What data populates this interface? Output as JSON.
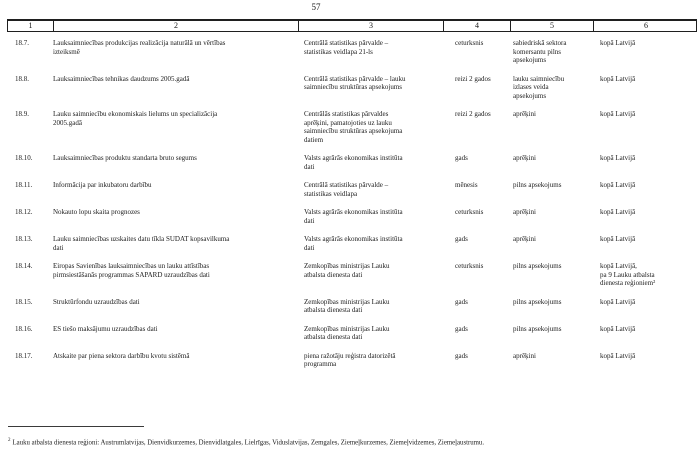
{
  "page": {
    "number": "57"
  },
  "table": {
    "columns": [
      "1",
      "2",
      "3",
      "4",
      "5",
      "6"
    ],
    "rows": [
      {
        "num": "18.7.",
        "name": "Lauksaimniecības produkcijas realizācija naturālā un vērtības\nizteiksmē",
        "source": "Centrālā statistikas pārvalde –\nstatistikas veidlapa 21-ls",
        "periodicity": "ceturksnis",
        "method": "sabiedriskā sektora\nkomersantu pilns\napsekojums",
        "coverage": "kopā Latvijā"
      },
      {
        "num": "18.8.",
        "name": "Lauksaimniecības tehnikas daudzums 2005.gadā",
        "source": "Centrālā statistikas pārvalde – lauku\nsaimniecību struktūras apsekojums",
        "periodicity": "reizi 2 gados",
        "method": "lauku saimniecību\nizlases veida\napsekojums",
        "coverage": "kopā Latvijā"
      },
      {
        "num": "18.9.",
        "name": "Lauku saimniecību ekonomiskais lielums un specializācija\n2005.gadā",
        "source": "Centrālās statistikas pārvaldes\naprēķini, pamatojoties uz lauku\nsaimniecību struktūras apsekojuma\ndatiem",
        "periodicity": "reizi 2 gados",
        "method": "aprēķini",
        "coverage": "kopā Latvijā"
      },
      {
        "num": "18.10.",
        "name": "Lauksaimniecības produktu standarta bruto segums",
        "source": "Valsts agrārās ekonomikas institūta\ndati",
        "periodicity": "gads",
        "method": "aprēķini",
        "coverage": "kopā Latvijā"
      },
      {
        "num": "18.11.",
        "name": "Informācija par inkubatoru darbību",
        "source": "Centrālā statistikas pārvalde –\nstatistikas veidlapa",
        "periodicity": "mēnesis",
        "method": "pilns apsekojums",
        "coverage": "kopā Latvijā"
      },
      {
        "num": "18.12.",
        "name": "Nokauto lopu skaita prognozes",
        "source": "Valsts agrārās ekonomikas institūta\ndati",
        "periodicity": "ceturksnis",
        "method": "aprēķini",
        "coverage": "kopā Latvijā"
      },
      {
        "num": "18.13.",
        "name": "Lauku saimniecības uzskaites datu tīkla SUDAT kopsavilkuma\ndati",
        "source": "Valsts agrārās ekonomikas institūta\ndati",
        "periodicity": "gads",
        "method": "aprēķini",
        "coverage": "kopā Latvijā"
      },
      {
        "num": "18.14.",
        "name": "Eiropas Savienības lauksaimniecības un lauku attīstības\npirmsiestāšanās programmas SAPARD uzraudzības dati",
        "source": "Zemkopības ministrijas Lauku\natbalsta dienesta dati",
        "periodicity": "ceturksnis",
        "method": "pilns apsekojums",
        "coverage": "kopā Latvijā,\npa 9 Lauku atbalsta\ndienesta reģioniem²"
      },
      {
        "num": "18.15.",
        "name": "Struktūrfondu uzraudzības dati",
        "source": "Zemkopības ministrijas Lauku\natbalsta dienesta dati",
        "periodicity": "gads",
        "method": "pilns apsekojums",
        "coverage": "kopā Latvijā"
      },
      {
        "num": "18.16.",
        "name": "ES tiešo maksājumu uzraudzības dati",
        "source": "Zemkopības ministrijas Lauku\natbalsta dienesta dati",
        "periodicity": "gads",
        "method": "pilns apsekojums",
        "coverage": "kopā Latvijā"
      },
      {
        "num": "18.17.",
        "name": "Atskaite par piena sektora darbību kvotu sistēmā",
        "source": "piena ražotāju reģistra datorizētā\nprogramma",
        "periodicity": "gads",
        "method": "aprēķini",
        "coverage": "kopā Latvijā"
      }
    ]
  },
  "footnote": {
    "marker": "2",
    "text": "Lauku atbalsta dienesta reģioni: Austrumlatvijas, Dienvidkurzemes, Dienvidlatgales, Lielrīgas, Viduslatvijas, Zemgales, Ziemeļkurzemes, Ziemeļvidzemes, Ziemeļaustrumu."
  }
}
